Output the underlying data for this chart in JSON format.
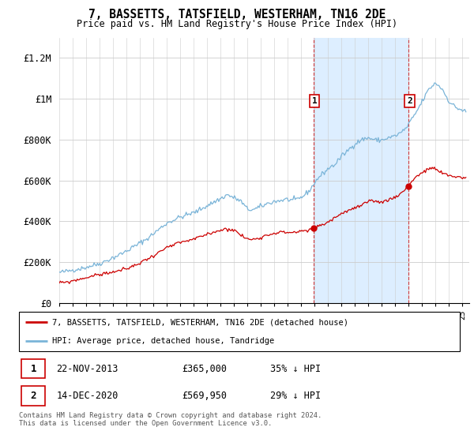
{
  "title": "7, BASSETTS, TATSFIELD, WESTERHAM, TN16 2DE",
  "subtitle": "Price paid vs. HM Land Registry's House Price Index (HPI)",
  "ylabel_ticks": [
    "£0",
    "£200K",
    "£400K",
    "£600K",
    "£800K",
    "£1M",
    "£1.2M"
  ],
  "ytick_vals": [
    0,
    200000,
    400000,
    600000,
    800000,
    1000000,
    1200000
  ],
  "ylim": [
    0,
    1300000
  ],
  "xlim_start": 1995.0,
  "xlim_end": 2025.5,
  "hpi_color": "#7ab4d8",
  "price_color": "#cc0000",
  "span_color": "#ddeeff",
  "purchase1_x": 2013.896,
  "purchase1_y": 365000,
  "purchase2_x": 2020.958,
  "purchase2_y": 569950,
  "legend_house": "7, BASSETTS, TATSFIELD, WESTERHAM, TN16 2DE (detached house)",
  "legend_hpi": "HPI: Average price, detached house, Tandridge",
  "table_row1": [
    "1",
    "22-NOV-2013",
    "£365,000",
    "35% ↓ HPI"
  ],
  "table_row2": [
    "2",
    "14-DEC-2020",
    "£569,950",
    "29% ↓ HPI"
  ],
  "footnote": "Contains HM Land Registry data © Crown copyright and database right 2024.\nThis data is licensed under the Open Government Licence v3.0."
}
